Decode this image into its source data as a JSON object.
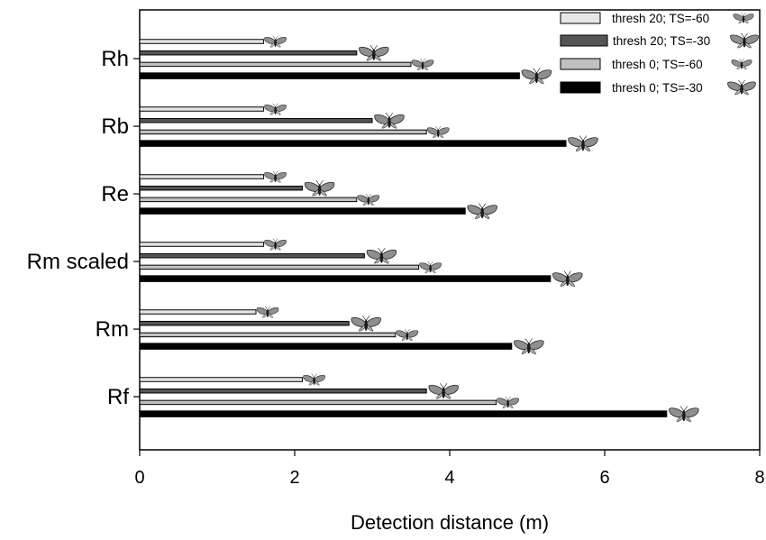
{
  "chart_data": {
    "type": "bar",
    "orientation": "horizontal",
    "title": "",
    "xlabel": "Detection distance (m)",
    "ylabel": "",
    "xlim": [
      0,
      8
    ],
    "xticks": [
      "0",
      "2",
      "4",
      "6",
      "8"
    ],
    "grid": false,
    "legend_position": "top-right",
    "categories": [
      "Rh",
      "Rb",
      "Re",
      "Rm scaled",
      "Rm",
      "Rf"
    ],
    "series": [
      {
        "name": "thresh 20; TS=-60",
        "color": "#e6e6e6",
        "icon": "small-moth-icon",
        "values": [
          1.6,
          1.6,
          1.6,
          1.6,
          1.5,
          2.1
        ]
      },
      {
        "name": "thresh 20; TS=-30",
        "color": "#555555",
        "icon": "large-moth-icon",
        "values": [
          2.8,
          3.0,
          2.1,
          2.9,
          2.7,
          3.7
        ]
      },
      {
        "name": "thresh 0; TS=-60",
        "color": "#c0c0c0",
        "icon": "small-moth-icon",
        "values": [
          3.5,
          3.7,
          2.8,
          3.6,
          3.3,
          4.6
        ]
      },
      {
        "name": "thresh 0; TS=-30",
        "color": "#000000",
        "icon": "large-moth-icon",
        "values": [
          4.9,
          5.5,
          4.2,
          5.3,
          4.8,
          6.8
        ]
      }
    ]
  }
}
